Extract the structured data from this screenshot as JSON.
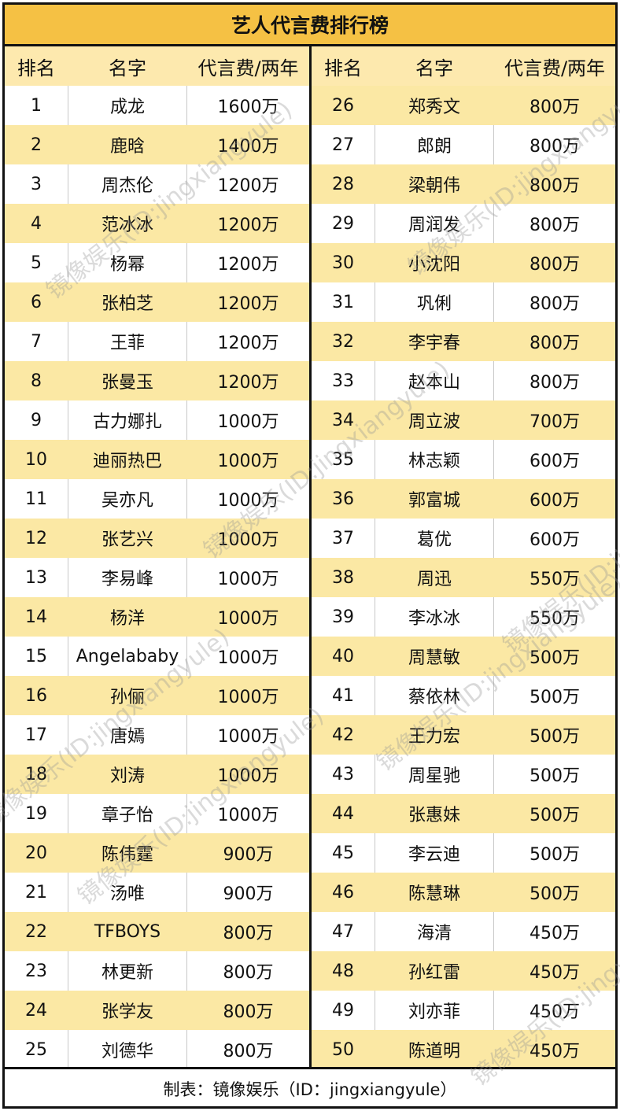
{
  "title": "艺人代言费排行榜",
  "columns": [
    "排名",
    "名字",
    "代言费/两年"
  ],
  "rows": [
    {
      "rank": "1",
      "name": "成龙",
      "fee": "1600万"
    },
    {
      "rank": "2",
      "name": "鹿晗",
      "fee": "1400万"
    },
    {
      "rank": "3",
      "name": "周杰伦",
      "fee": "1200万"
    },
    {
      "rank": "4",
      "name": "范冰冰",
      "fee": "1200万"
    },
    {
      "rank": "5",
      "name": "杨幂",
      "fee": "1200万"
    },
    {
      "rank": "6",
      "name": "张柏芝",
      "fee": "1200万"
    },
    {
      "rank": "7",
      "name": "王菲",
      "fee": "1200万"
    },
    {
      "rank": "8",
      "name": "张曼玉",
      "fee": "1200万"
    },
    {
      "rank": "9",
      "name": "古力娜扎",
      "fee": "1000万"
    },
    {
      "rank": "10",
      "name": "迪丽热巴",
      "fee": "1000万"
    },
    {
      "rank": "11",
      "name": "吴亦凡",
      "fee": "1000万"
    },
    {
      "rank": "12",
      "name": "张艺兴",
      "fee": "1000万"
    },
    {
      "rank": "13",
      "name": "李易峰",
      "fee": "1000万"
    },
    {
      "rank": "14",
      "name": "杨洋",
      "fee": "1000万"
    },
    {
      "rank": "15",
      "name": "Angelababy",
      "fee": "1000万"
    },
    {
      "rank": "16",
      "name": "孙俪",
      "fee": "1000万"
    },
    {
      "rank": "17",
      "name": "唐嫣",
      "fee": "1000万"
    },
    {
      "rank": "18",
      "name": "刘涛",
      "fee": "1000万"
    },
    {
      "rank": "19",
      "name": "章子怡",
      "fee": "1000万"
    },
    {
      "rank": "20",
      "name": "陈伟霆",
      "fee": "900万"
    },
    {
      "rank": "21",
      "name": "汤唯",
      "fee": "900万"
    },
    {
      "rank": "22",
      "name": "TFBOYS",
      "fee": "800万"
    },
    {
      "rank": "23",
      "name": "林更新",
      "fee": "800万"
    },
    {
      "rank": "24",
      "name": "张学友",
      "fee": "800万"
    },
    {
      "rank": "25",
      "name": "刘德华",
      "fee": "800万"
    },
    {
      "rank": "26",
      "name": "郑秀文",
      "fee": "800万"
    },
    {
      "rank": "27",
      "name": "郎朗",
      "fee": "800万"
    },
    {
      "rank": "28",
      "name": "梁朝伟",
      "fee": "800万"
    },
    {
      "rank": "29",
      "name": "周润发",
      "fee": "800万"
    },
    {
      "rank": "30",
      "name": "小沈阳",
      "fee": "800万"
    },
    {
      "rank": "31",
      "name": "巩俐",
      "fee": "800万"
    },
    {
      "rank": "32",
      "name": "李宇春",
      "fee": "800万"
    },
    {
      "rank": "33",
      "name": "赵本山",
      "fee": "800万"
    },
    {
      "rank": "34",
      "name": "周立波",
      "fee": "700万"
    },
    {
      "rank": "35",
      "name": "林志颖",
      "fee": "600万"
    },
    {
      "rank": "36",
      "name": "郭富城",
      "fee": "600万"
    },
    {
      "rank": "37",
      "name": "葛优",
      "fee": "600万"
    },
    {
      "rank": "38",
      "name": "周迅",
      "fee": "550万"
    },
    {
      "rank": "39",
      "name": "李冰冰",
      "fee": "550万"
    },
    {
      "rank": "40",
      "name": "周慧敏",
      "fee": "500万"
    },
    {
      "rank": "41",
      "name": "蔡依林",
      "fee": "500万"
    },
    {
      "rank": "42",
      "name": "王力宏",
      "fee": "500万"
    },
    {
      "rank": "43",
      "name": "周星驰",
      "fee": "500万"
    },
    {
      "rank": "44",
      "name": "张惠妹",
      "fee": "500万"
    },
    {
      "rank": "45",
      "name": "李云迪",
      "fee": "500万"
    },
    {
      "rank": "46",
      "name": "陈慧琳",
      "fee": "500万"
    },
    {
      "rank": "47",
      "name": "海清",
      "fee": "450万"
    },
    {
      "rank": "48",
      "name": "孙红雷",
      "fee": "450万"
    },
    {
      "rank": "49",
      "name": "刘亦菲",
      "fee": "450万"
    },
    {
      "rank": "50",
      "name": "陈道明",
      "fee": "450万"
    }
  ],
  "footer": "制表：镜像娱乐（ID：jingxiangyule）",
  "watermark": "镜像娱乐(ID:jingxiangyule)",
  "colors": {
    "title_bg": "#f5c144",
    "header_bg": "#fde9ae",
    "alt_row_bg": "#fbe8a4",
    "border": "#111111"
  }
}
